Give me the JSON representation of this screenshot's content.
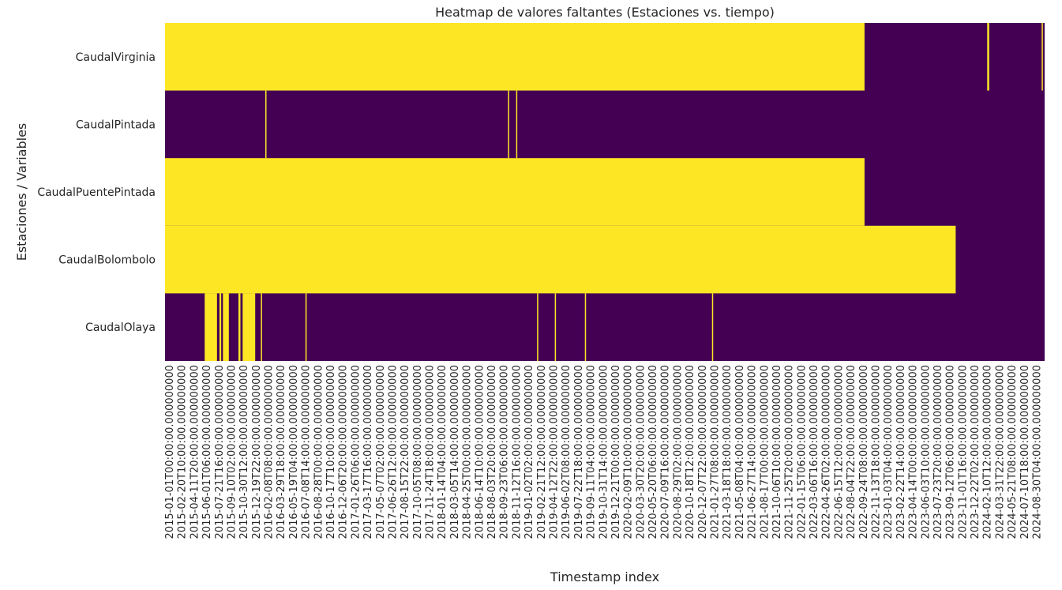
{
  "chart_data": {
    "type": "heatmap",
    "title": "Heatmap de valores faltantes (Estaciones vs. tiempo)",
    "xlabel": "Timestamp index",
    "ylabel": "Estaciones / Variables",
    "colors": {
      "missing": "#fde725",
      "present": "#440154"
    },
    "rows": [
      "CaudalVirginia",
      "CaudalPintada",
      "CaudalPuentePintada",
      "CaudalBolombolo",
      "CaudalOlaya"
    ],
    "x_ticks": [
      "2015-01-01T00:00:00.000000000",
      "2015-02-20T10:00:00.000000000",
      "2015-04-11T20:00:00.000000000",
      "2015-06-01T06:00:00.000000000",
      "2015-07-21T16:00:00.000000000",
      "2015-09-10T02:00:00.000000000",
      "2015-10-30T12:00:00.000000000",
      "2015-12-19T22:00:00.000000000",
      "2016-02-08T08:00:00.000000000",
      "2016-03-29T18:00:00.000000000",
      "2016-05-19T04:00:00.000000000",
      "2016-07-08T14:00:00.000000000",
      "2016-08-28T00:00:00.000000000",
      "2016-10-17T10:00:00.000000000",
      "2016-12-06T20:00:00.000000000",
      "2017-01-26T06:00:00.000000000",
      "2017-03-17T16:00:00.000000000",
      "2017-05-07T02:00:00.000000000",
      "2017-06-26T12:00:00.000000000",
      "2017-08-15T22:00:00.000000000",
      "2017-10-05T08:00:00.000000000",
      "2017-11-24T18:00:00.000000000",
      "2018-01-14T04:00:00.000000000",
      "2018-03-05T14:00:00.000000000",
      "2018-04-25T00:00:00.000000000",
      "2018-06-14T10:00:00.000000000",
      "2018-08-03T20:00:00.000000000",
      "2018-09-23T06:00:00.000000000",
      "2018-11-12T16:00:00.000000000",
      "2019-01-02T02:00:00.000000000",
      "2019-02-21T12:00:00.000000000",
      "2019-04-12T22:00:00.000000000",
      "2019-06-02T08:00:00.000000000",
      "2019-07-22T18:00:00.000000000",
      "2019-09-11T04:00:00.000000000",
      "2019-10-31T14:00:00.000000000",
      "2019-12-21T00:00:00.000000000",
      "2020-02-09T10:00:00.000000000",
      "2020-03-30T20:00:00.000000000",
      "2020-05-20T06:00:00.000000000",
      "2020-07-09T16:00:00.000000000",
      "2020-08-29T02:00:00.000000000",
      "2020-10-18T12:00:00.000000000",
      "2020-12-07T22:00:00.000000000",
      "2021-01-27T08:00:00.000000000",
      "2021-03-18T18:00:00.000000000",
      "2021-05-08T04:00:00.000000000",
      "2021-06-27T14:00:00.000000000",
      "2021-08-17T00:00:00.000000000",
      "2021-10-06T10:00:00.000000000",
      "2021-11-25T20:00:00.000000000",
      "2022-01-15T06:00:00.000000000",
      "2022-03-06T16:00:00.000000000",
      "2022-04-26T02:00:00.000000000",
      "2022-06-15T12:00:00.000000000",
      "2022-08-04T22:00:00.000000000",
      "2022-09-24T08:00:00.000000000",
      "2022-11-13T18:00:00.000000000",
      "2023-01-03T04:00:00.000000000",
      "2023-02-22T14:00:00.000000000",
      "2023-04-14T00:00:00.000000000",
      "2023-06-03T10:00:00.000000000",
      "2023-07-23T20:00:00.000000000",
      "2023-09-12T06:00:00.000000000",
      "2023-11-01T16:00:00.000000000",
      "2023-12-22T02:00:00.000000000",
      "2024-02-10T12:00:00.000000000",
      "2024-03-31T22:00:00.000000000",
      "2024-05-21T08:00:00.000000000",
      "2024-07-10T18:00:00.000000000",
      "2024-08-30T04:00:00.000000000"
    ],
    "x_range": [
      "2015-01-01T00:00:00",
      "2024-10-10T00:00:00"
    ],
    "missing_segments": [
      [
        [
          "2015-01-01T00:00:00",
          "2022-10-10T00:00:00"
        ],
        [
          "2024-02-20T00:00:00",
          "2024-02-28T00:00:00"
        ],
        [
          "2024-09-28T00:00:00",
          "2024-10-02T00:00:00"
        ]
      ],
      [
        [
          "2016-02-12T00:00:00",
          "2016-02-15T00:00:00"
        ],
        [
          "2018-10-24T00:00:00",
          "2018-10-27T00:00:00"
        ],
        [
          "2018-11-26T00:00:00",
          "2018-11-29T00:00:00"
        ]
      ],
      [
        [
          "2015-01-01T00:00:00",
          "2022-10-10T00:00:00"
        ]
      ],
      [
        [
          "2015-01-01T00:00:00",
          "2023-10-15T00:00:00"
        ]
      ],
      [
        [
          "2015-06-11T00:00:00",
          "2015-07-31T00:00:00"
        ],
        [
          "2015-08-10T00:00:00",
          "2015-08-17T00:00:00"
        ],
        [
          "2015-08-24T00:00:00",
          "2015-09-17T00:00:00"
        ],
        [
          "2015-10-26T00:00:00",
          "2015-11-03T00:00:00"
        ],
        [
          "2015-11-12T00:00:00",
          "2016-01-02T00:00:00"
        ],
        [
          "2016-01-25T00:00:00",
          "2016-01-28T00:00:00"
        ],
        [
          "2016-07-24T00:00:00",
          "2016-07-27T00:00:00"
        ],
        [
          "2019-02-19T00:00:00",
          "2019-02-22T00:00:00"
        ],
        [
          "2019-05-02T00:00:00",
          "2019-05-05T00:00:00"
        ],
        [
          "2019-09-01T00:00:00",
          "2019-09-04T00:00:00"
        ],
        [
          "2021-01-29T00:00:00",
          "2021-02-01T00:00:00"
        ]
      ]
    ]
  }
}
